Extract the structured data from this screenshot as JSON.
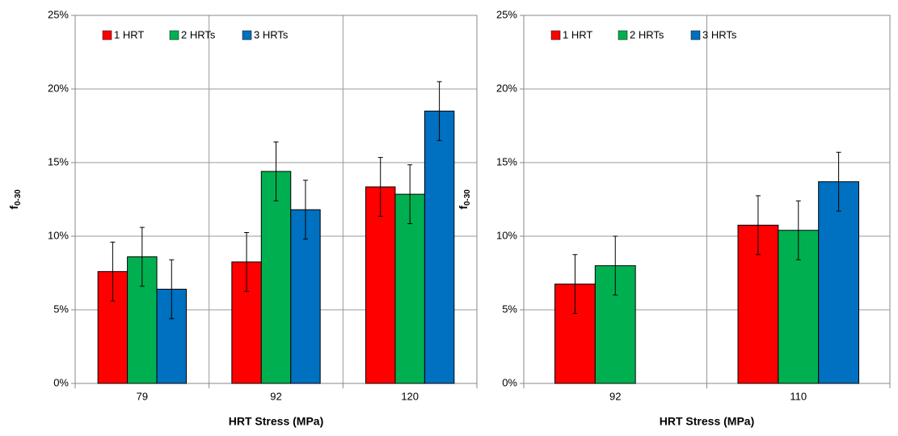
{
  "chart_data": [
    {
      "type": "bar",
      "x_label": "HRT Stress (MPa)",
      "y_label": "f",
      "y_label_sub": "0-30",
      "categories": [
        "79",
        "92",
        "120"
      ],
      "series": [
        {
          "name": "1 HRT",
          "color": "#ff0000",
          "values": [
            7.6,
            8.25,
            13.35
          ],
          "errors": [
            2,
            2,
            2
          ]
        },
        {
          "name": "2 HRTs",
          "color": "#00b050",
          "values": [
            8.6,
            14.4,
            12.85
          ],
          "errors": [
            2,
            2,
            2
          ]
        },
        {
          "name": "3 HRTs",
          "color": "#0070c0",
          "values": [
            6.4,
            11.8,
            18.5
          ],
          "errors": [
            2,
            2,
            2
          ]
        }
      ],
      "ylim": [
        0,
        25
      ],
      "yticks": [
        {
          "value": 0,
          "label": "0%"
        },
        {
          "value": 5,
          "label": "5%"
        },
        {
          "value": 10,
          "label": "10%"
        },
        {
          "value": 15,
          "label": "15%"
        },
        {
          "value": 20,
          "label": "20%"
        },
        {
          "value": 25,
          "label": "25%"
        }
      ],
      "grid": true,
      "legend": "top-left"
    },
    {
      "type": "bar",
      "x_label": "HRT Stress (MPa)",
      "y_label": "f",
      "y_label_sub": "0-30",
      "categories": [
        "92",
        "110"
      ],
      "series": [
        {
          "name": "1 HRT",
          "color": "#ff0000",
          "values": [
            6.75,
            10.75
          ],
          "errors": [
            2,
            2
          ]
        },
        {
          "name": "2 HRTs",
          "color": "#00b050",
          "values": [
            8.0,
            10.4
          ],
          "errors": [
            2,
            2
          ]
        },
        {
          "name": "3 HRTs",
          "color": "#0070c0",
          "values": [
            null,
            13.7
          ],
          "errors": [
            null,
            2
          ]
        }
      ],
      "ylim": [
        0,
        25
      ],
      "yticks": [
        {
          "value": 0,
          "label": "0%"
        },
        {
          "value": 5,
          "label": "5%"
        },
        {
          "value": 10,
          "label": "10%"
        },
        {
          "value": 15,
          "label": "15%"
        },
        {
          "value": 20,
          "label": "20%"
        },
        {
          "value": 25,
          "label": "25%"
        }
      ],
      "grid": true,
      "legend": "top-left"
    }
  ]
}
